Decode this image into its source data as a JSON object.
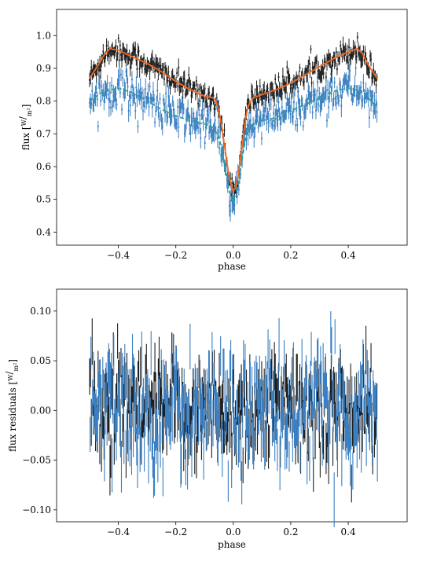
{
  "chart_data": [
    {
      "type": "line",
      "xlabel": "phase",
      "ylabel": "flux [W/m²]",
      "ylabel_parts": {
        "prefix": "flux ",
        "num": "W",
        "den": "m²"
      },
      "xlim": [
        -0.615,
        0.605
      ],
      "ylim": [
        0.36,
        1.08
      ],
      "xticks": [
        -0.4,
        -0.2,
        0.0,
        0.2,
        0.4
      ],
      "xtick_labels": [
        "−0.4",
        "−0.2",
        "0.0",
        "0.2",
        "0.4"
      ],
      "yticks": [
        0.4,
        0.5,
        0.6,
        0.7,
        0.8,
        0.9,
        1.0
      ],
      "ytick_labels": [
        "0.4",
        "0.5",
        "0.6",
        "0.7",
        "0.8",
        "0.9",
        "1.0"
      ],
      "grid": false,
      "series": [
        {
          "role": "observed-errorbars",
          "color": "#1f1f1f",
          "model_x": [
            -0.5,
            -0.47,
            -0.45,
            -0.43,
            -0.4,
            -0.35,
            -0.3,
            -0.25,
            -0.2,
            -0.15,
            -0.1,
            -0.07,
            -0.06,
            -0.05,
            -0.04,
            -0.03,
            -0.02,
            -0.01,
            0.0,
            0.01,
            0.02,
            0.03,
            0.04,
            0.05,
            0.06,
            0.07,
            0.1,
            0.15,
            0.2,
            0.25,
            0.3,
            0.35,
            0.4,
            0.43,
            0.45,
            0.47,
            0.5
          ],
          "model_y": [
            0.87,
            0.91,
            0.94,
            0.96,
            0.955,
            0.935,
            0.915,
            0.89,
            0.86,
            0.835,
            0.815,
            0.81,
            0.8,
            0.77,
            0.72,
            0.66,
            0.6,
            0.55,
            0.525,
            0.54,
            0.59,
            0.66,
            0.73,
            0.78,
            0.8,
            0.81,
            0.82,
            0.835,
            0.855,
            0.88,
            0.905,
            0.93,
            0.95,
            0.96,
            0.945,
            0.91,
            0.87
          ],
          "noise": 0.018,
          "err": 0.02
        },
        {
          "role": "observed-errorbars",
          "color": "#3a7fc1",
          "model_x": [
            -0.5,
            -0.45,
            -0.4,
            -0.35,
            -0.3,
            -0.25,
            -0.2,
            -0.15,
            -0.1,
            -0.07,
            -0.05,
            -0.04,
            -0.03,
            -0.02,
            -0.01,
            0.0,
            0.01,
            0.02,
            0.03,
            0.04,
            0.05,
            0.07,
            0.1,
            0.15,
            0.2,
            0.25,
            0.3,
            0.35,
            0.4,
            0.45,
            0.5
          ],
          "model_y": [
            0.8,
            0.83,
            0.84,
            0.825,
            0.8,
            0.775,
            0.755,
            0.74,
            0.73,
            0.72,
            0.69,
            0.65,
            0.6,
            0.55,
            0.51,
            0.49,
            0.51,
            0.56,
            0.62,
            0.67,
            0.71,
            0.73,
            0.74,
            0.75,
            0.77,
            0.79,
            0.81,
            0.83,
            0.84,
            0.83,
            0.78
          ],
          "noise": 0.028,
          "err": 0.025
        },
        {
          "role": "model-line",
          "color": "#f26b21",
          "dash": false,
          "x": [
            -0.5,
            -0.47,
            -0.45,
            -0.43,
            -0.4,
            -0.35,
            -0.3,
            -0.25,
            -0.2,
            -0.15,
            -0.1,
            -0.07,
            -0.06,
            -0.05,
            -0.04,
            -0.03,
            -0.02,
            -0.01,
            0.0,
            0.01,
            0.02,
            0.03,
            0.04,
            0.05,
            0.06,
            0.07,
            0.1,
            0.15,
            0.2,
            0.25,
            0.3,
            0.35,
            0.4,
            0.43,
            0.45,
            0.47,
            0.5
          ],
          "y": [
            0.87,
            0.91,
            0.94,
            0.96,
            0.955,
            0.935,
            0.915,
            0.89,
            0.86,
            0.835,
            0.815,
            0.81,
            0.8,
            0.77,
            0.72,
            0.66,
            0.6,
            0.55,
            0.525,
            0.54,
            0.59,
            0.66,
            0.73,
            0.78,
            0.8,
            0.81,
            0.82,
            0.835,
            0.855,
            0.88,
            0.905,
            0.93,
            0.95,
            0.96,
            0.945,
            0.91,
            0.87
          ]
        },
        {
          "role": "model-line",
          "color": "#2aa198",
          "dash": true,
          "x": [
            -0.5,
            -0.45,
            -0.4,
            -0.35,
            -0.3,
            -0.25,
            -0.2,
            -0.15,
            -0.1,
            -0.07,
            -0.05,
            -0.04,
            -0.03,
            -0.02,
            -0.01,
            0.0,
            0.01,
            0.02,
            0.03,
            0.04,
            0.05,
            0.07,
            0.1,
            0.15,
            0.2,
            0.25,
            0.3,
            0.35,
            0.4,
            0.45,
            0.5
          ],
          "y": [
            0.8,
            0.83,
            0.84,
            0.825,
            0.8,
            0.775,
            0.755,
            0.74,
            0.73,
            0.72,
            0.69,
            0.65,
            0.6,
            0.55,
            0.51,
            0.49,
            0.51,
            0.56,
            0.62,
            0.67,
            0.71,
            0.73,
            0.74,
            0.75,
            0.77,
            0.79,
            0.81,
            0.83,
            0.84,
            0.83,
            0.78
          ]
        }
      ]
    },
    {
      "type": "line",
      "xlabel": "phase",
      "ylabel": "flux residuals [W/m²]",
      "ylabel_parts": {
        "prefix": "flux residuals ",
        "num": "W",
        "den": "m²"
      },
      "xlim": [
        -0.615,
        0.605
      ],
      "ylim": [
        -0.112,
        0.122
      ],
      "xticks": [
        -0.4,
        -0.2,
        0.0,
        0.2,
        0.4
      ],
      "xtick_labels": [
        "−0.4",
        "−0.2",
        "0.0",
        "0.2",
        "0.4"
      ],
      "yticks": [
        -0.1,
        -0.05,
        0.0,
        0.05,
        0.1
      ],
      "ytick_labels": [
        "−0.10",
        "−0.05",
        "0.00",
        "0.05",
        "0.10"
      ],
      "grid": false,
      "series": [
        {
          "role": "residuals",
          "color": "#1f1f1f",
          "noise": 0.026,
          "err": 0.02
        },
        {
          "role": "residuals",
          "color": "#3a7fc1",
          "noise": 0.03,
          "err": 0.022
        }
      ]
    }
  ]
}
